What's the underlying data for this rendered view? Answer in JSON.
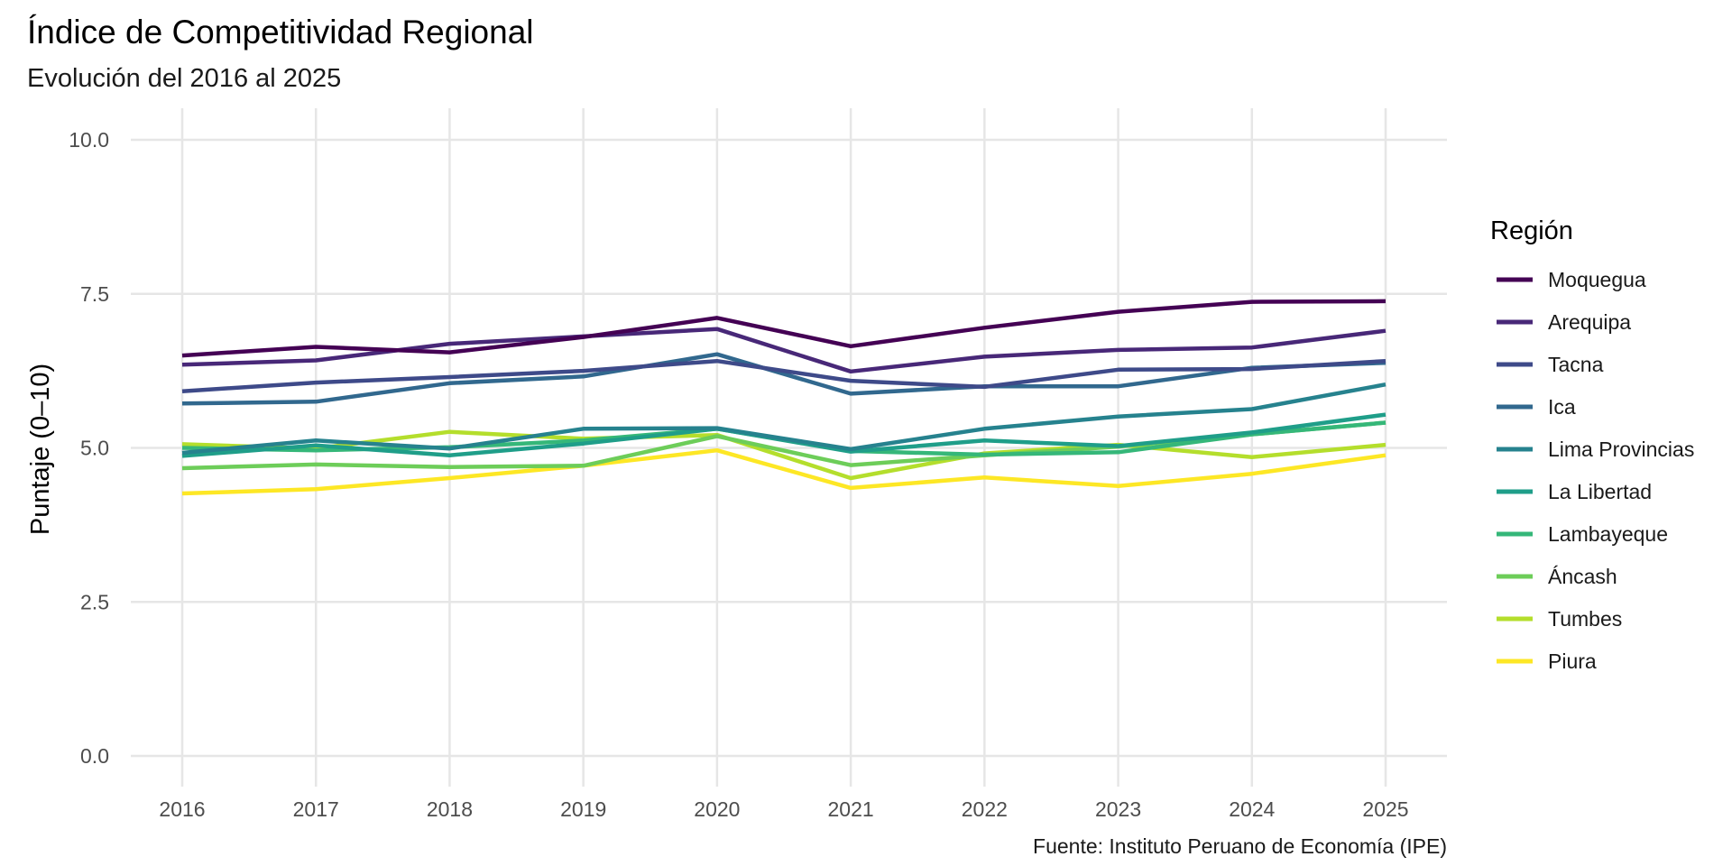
{
  "chart_data": {
    "type": "line",
    "title": "Índice de Competitividad Regional",
    "subtitle": "Evolución del 2016 al 2025",
    "ylabel": "Puntaje (0–10)",
    "xlabel": "",
    "caption": "Fuente: Instituto Peruano de Economía (IPE)",
    "legend_title": "Región",
    "legend_position": "right",
    "grid": true,
    "x": [
      "2016",
      "2017",
      "2018",
      "2019",
      "2020",
      "2021",
      "2022",
      "2023",
      "2024",
      "2025"
    ],
    "ylim": [
      0,
      10
    ],
    "y_ticks": [
      "0.0",
      "2.5",
      "5.0",
      "7.5",
      "10.0"
    ],
    "series": [
      {
        "name": "Moquegua",
        "color": "#440154",
        "values": [
          6.5,
          6.64,
          6.55,
          6.8,
          7.11,
          6.65,
          6.95,
          7.21,
          7.37,
          7.38
        ]
      },
      {
        "name": "Arequipa",
        "color": "#482878",
        "values": [
          6.35,
          6.42,
          6.69,
          6.81,
          6.93,
          6.24,
          6.48,
          6.59,
          6.63,
          6.9
        ]
      },
      {
        "name": "Tacna",
        "color": "#3E4A89",
        "values": [
          5.92,
          6.06,
          6.15,
          6.25,
          6.41,
          6.09,
          5.99,
          6.27,
          6.28,
          6.41
        ]
      },
      {
        "name": "Ica",
        "color": "#31688E",
        "values": [
          5.72,
          5.75,
          6.05,
          6.16,
          6.52,
          5.88,
          6.0,
          6.0,
          6.3,
          6.38
        ]
      },
      {
        "name": "Lima Provincias",
        "color": "#26828E",
        "values": [
          4.92,
          5.12,
          4.99,
          5.31,
          5.32,
          4.98,
          5.31,
          5.51,
          5.63,
          6.03
        ]
      },
      {
        "name": "La Libertad",
        "color": "#1F9E89",
        "values": [
          4.87,
          5.04,
          4.88,
          5.07,
          5.31,
          4.94,
          5.12,
          5.03,
          5.25,
          5.54
        ]
      },
      {
        "name": "Lambayeque",
        "color": "#35B779",
        "values": [
          5.0,
          4.96,
          5.01,
          5.12,
          5.31,
          4.95,
          4.89,
          4.93,
          5.22,
          5.41
        ]
      },
      {
        "name": "Áncash",
        "color": "#6DCD59",
        "values": [
          4.67,
          4.73,
          4.69,
          4.71,
          5.19,
          4.72,
          4.88,
          5.02,
          5.22,
          5.41
        ]
      },
      {
        "name": "Tumbes",
        "color": "#B4DE2C",
        "values": [
          5.06,
          4.99,
          5.26,
          5.15,
          5.21,
          4.51,
          4.91,
          5.05,
          4.85,
          5.05
        ]
      },
      {
        "name": "Piura",
        "color": "#FDE725",
        "values": [
          4.26,
          4.33,
          4.51,
          4.71,
          4.96,
          4.35,
          4.52,
          4.38,
          4.58,
          4.88
        ]
      }
    ]
  }
}
